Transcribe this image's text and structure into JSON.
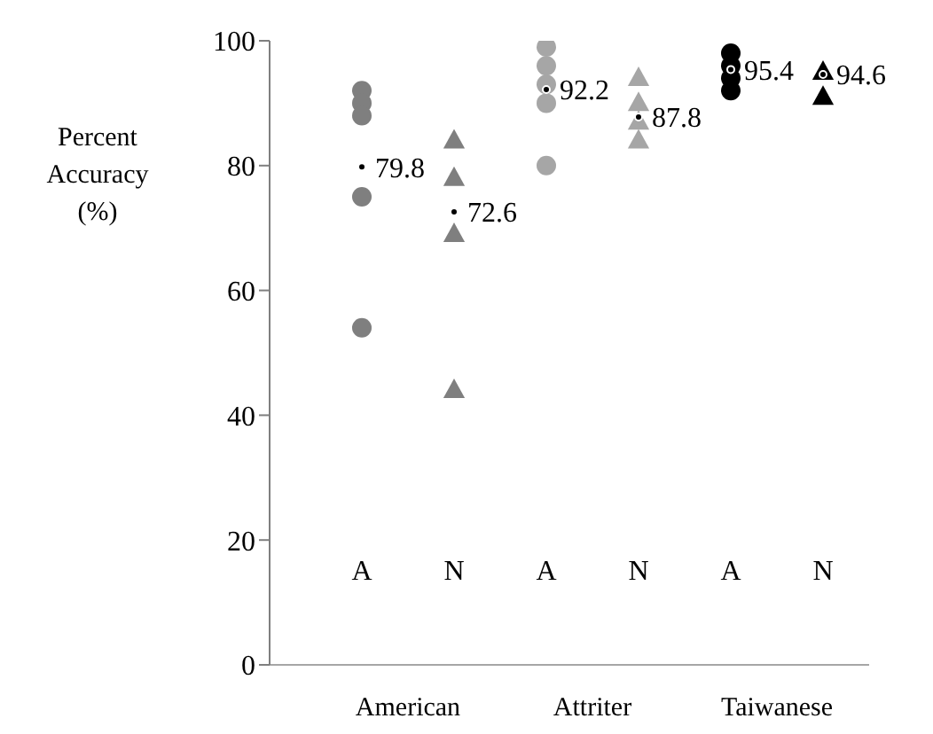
{
  "chart_data": {
    "type": "scatter",
    "ylabel": "Percent Accuracy (%)",
    "categories": [
      "American",
      "Attriter",
      "Taiwanese"
    ],
    "ylim": [
      0,
      100
    ],
    "yticks": [
      0,
      20,
      40,
      60,
      80,
      100
    ],
    "grid": false,
    "legend": false,
    "series": [
      {
        "name": "A",
        "marker": "circle",
        "colors": [
          "#7f7f7f",
          "#a6a6a6",
          "#000000"
        ],
        "values": [
          92,
          99,
          98
        ]
      },
      {
        "marker": "circle",
        "colors": [
          "#7f7f7f",
          "#a6a6a6",
          "#000000"
        ],
        "values": [
          90,
          96,
          96
        ]
      },
      {
        "marker": "circle",
        "colors": [
          "#7f7f7f",
          "#a6a6a6",
          "#000000"
        ],
        "values": [
          88,
          93,
          94
        ]
      },
      {
        "marker": "circle",
        "colors": [
          "#7f7f7f",
          "#a6a6a6",
          "#000000"
        ],
        "values": [
          75,
          90,
          92
        ]
      },
      {
        "marker": "circle",
        "colors": [
          "#7f7f7f",
          "#a6a6a6",
          "#000000"
        ],
        "values": [
          54,
          80,
          null
        ]
      },
      {
        "marker": "circle",
        "color": "#000000",
        "values": [
          79.8,
          92.2,
          95.4
        ],
        "data_labels": true
      },
      {
        "name": "N",
        "marker": "triangle",
        "colors": [
          "#7f7f7f",
          "#a6a6a6",
          "#000000"
        ],
        "values": [
          84,
          94,
          95
        ]
      },
      {
        "marker": "triangle",
        "colors": [
          "#7f7f7f",
          "#a6a6a6",
          "#000000"
        ],
        "values": [
          78,
          90,
          91
        ]
      },
      {
        "marker": "triangle",
        "colors": [
          "#7f7f7f",
          "#a6a6a6",
          "#000000"
        ],
        "values": [
          69,
          87,
          null
        ]
      },
      {
        "marker": "triangle",
        "colors": [
          "#7f7f7f",
          "#a6a6a6",
          "#000000"
        ],
        "values": [
          44,
          84,
          null
        ]
      },
      {
        "marker": "circle",
        "color": "#000000",
        "values": [
          72.6,
          87.8,
          94.6
        ],
        "data_labels": true
      }
    ]
  }
}
